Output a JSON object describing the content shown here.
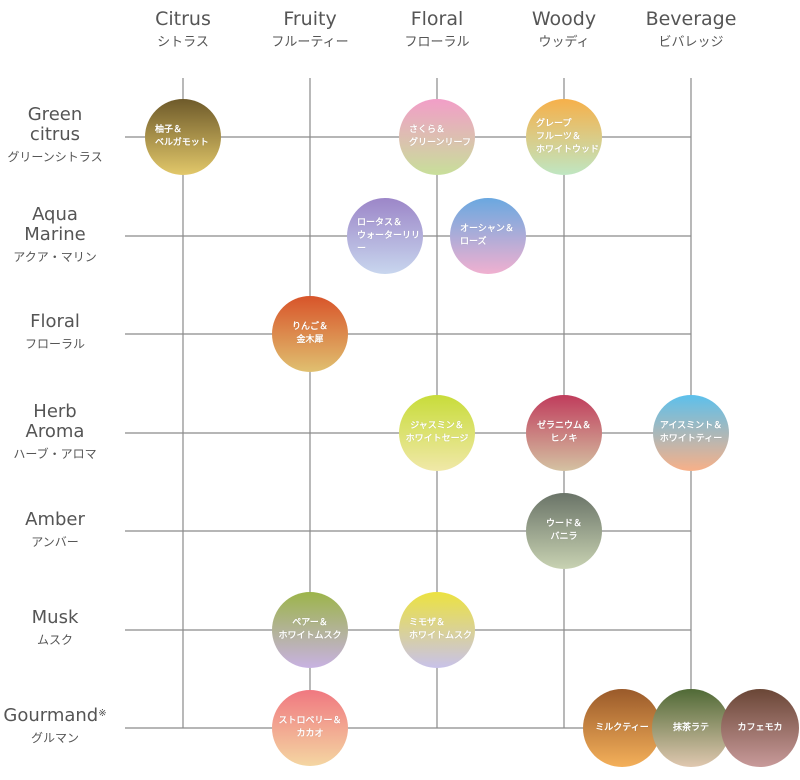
{
  "columns": [
    {
      "en": "Citrus",
      "ja": "シトラス"
    },
    {
      "en": "Fruity",
      "ja": "フルーティー"
    },
    {
      "en": "Floral",
      "ja": "フローラル"
    },
    {
      "en": "Woody",
      "ja": "ウッディ"
    },
    {
      "en": "Beverage",
      "ja": "ビバレッジ"
    }
  ],
  "rows": [
    {
      "en": "Green\ncitrus",
      "ja": "グリーンシトラス"
    },
    {
      "en": "Aqua\nMarine",
      "ja": "アクア・マリン"
    },
    {
      "en": "Floral",
      "ja": "フローラル"
    },
    {
      "en": "Herb\nAroma",
      "ja": "ハーブ・アロマ"
    },
    {
      "en": "Amber",
      "ja": "アンバー"
    },
    {
      "en": "Musk",
      "ja": "ムスク"
    },
    {
      "en": "Gourmand",
      "ja": "グルマン",
      "note_mark": "※"
    }
  ],
  "nodes": [
    {
      "label": "柚子＆\nベルガモット",
      "colors": [
        "#6e5a2a",
        "#e2c86a"
      ]
    },
    {
      "label": "さくら＆\nグリーンリーフ",
      "colors": [
        "#f29ec8",
        "#c8df9a"
      ]
    },
    {
      "label": "グレープ\nフルーツ＆\nホワイトウッド",
      "colors": [
        "#f6b04a",
        "#bfe6c2"
      ]
    },
    {
      "label": "ロータス＆\nウォーターリリー",
      "colors": [
        "#9c86c8",
        "#c8d6ee"
      ]
    },
    {
      "label": "オーシャン＆\nローズ",
      "colors": [
        "#6aa8e0",
        "#f0b0d0"
      ]
    },
    {
      "label": "りんご＆\n金木犀",
      "colors": [
        "#d8542a",
        "#e0c070"
      ]
    },
    {
      "label": "ジャスミン＆\nホワイトセージ",
      "colors": [
        "#c8dc3a",
        "#f0e8a8"
      ]
    },
    {
      "label": "ゼラニウム＆\nヒノキ",
      "colors": [
        "#c03c5c",
        "#d4c2a2"
      ]
    },
    {
      "label": "アイスミント＆\nホワイトティー",
      "colors": [
        "#5cc0ec",
        "#f8b088"
      ]
    },
    {
      "label": "ウード＆\nバニラ",
      "colors": [
        "#6a7468",
        "#c8d2b2"
      ]
    },
    {
      "label": "ペアー＆\nホワイトムスク",
      "colors": [
        "#9cb44a",
        "#c8b2e2"
      ]
    },
    {
      "label": "ミモザ＆\nホワイトムスク",
      "colors": [
        "#ece240",
        "#c8c2ea"
      ]
    },
    {
      "label": "ストロベリー＆\nカカオ",
      "colors": [
        "#f07880",
        "#f4d6a2"
      ]
    },
    {
      "label": "ミルクティー",
      "colors": [
        "#9a5a2a",
        "#f4b05a"
      ]
    },
    {
      "label": "抹茶ラテ",
      "colors": [
        "#506a36",
        "#e0c8b0"
      ]
    },
    {
      "label": "カフェモカ",
      "colors": [
        "#6a4636",
        "#c89a9a"
      ]
    }
  ]
}
